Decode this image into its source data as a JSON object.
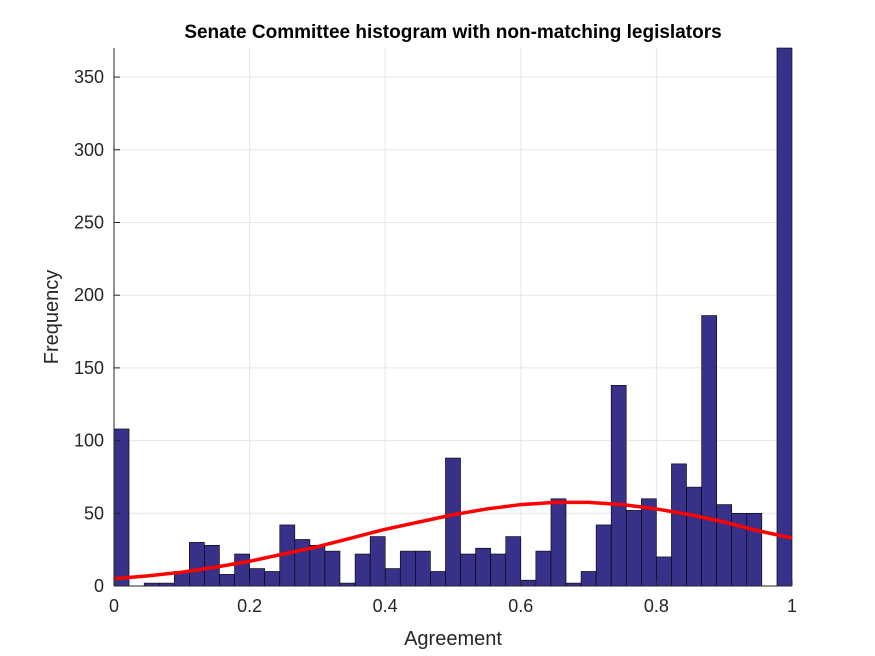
{
  "chart_data": {
    "type": "bar",
    "title": "Senate Committee histogram with non-matching legislators",
    "xlabel": "Agreement",
    "ylabel": "Frequency",
    "xlim": [
      0,
      1
    ],
    "ylim": [
      0,
      370
    ],
    "grid": true,
    "x_ticks": [
      "0",
      "0.2",
      "0.4",
      "0.6",
      "0.8",
      "1"
    ],
    "x_tick_values": [
      0,
      0.2,
      0.4,
      0.6,
      0.8,
      1
    ],
    "y_ticks": [
      "0",
      "50",
      "100",
      "150",
      "200",
      "250",
      "300",
      "350"
    ],
    "y_tick_values": [
      0,
      50,
      100,
      150,
      200,
      250,
      300,
      350
    ],
    "bin_width": 0.0222,
    "bins": {
      "x": [
        0.0111,
        0.0333,
        0.0556,
        0.0778,
        0.1,
        0.1222,
        0.1444,
        0.1667,
        0.1889,
        0.2111,
        0.2333,
        0.2556,
        0.2778,
        0.3,
        0.3222,
        0.3444,
        0.3667,
        0.3889,
        0.4111,
        0.4333,
        0.4556,
        0.4778,
        0.5,
        0.5222,
        0.5444,
        0.5667,
        0.5889,
        0.6111,
        0.6333,
        0.6556,
        0.6778,
        0.7,
        0.7222,
        0.7444,
        0.7667,
        0.7889,
        0.8111,
        0.8333,
        0.8556,
        0.8778,
        0.9,
        0.9222,
        0.9444,
        0.9667,
        0.9889
      ],
      "values": [
        108,
        0,
        2,
        2,
        10,
        30,
        28,
        8,
        22,
        12,
        10,
        42,
        32,
        28,
        24,
        2,
        22,
        34,
        12,
        24,
        24,
        10,
        88,
        22,
        26,
        22,
        34,
        4,
        24,
        60,
        2,
        10,
        42,
        138,
        52,
        60,
        20,
        84,
        68,
        186,
        56,
        50,
        50,
        0,
        370
      ]
    },
    "series": [
      {
        "name": "",
        "type": "line",
        "color": "#ff0000",
        "x": [
          0,
          0.05,
          0.1,
          0.15,
          0.2,
          0.25,
          0.3,
          0.35,
          0.4,
          0.45,
          0.5,
          0.55,
          0.6,
          0.65,
          0.7,
          0.75,
          0.8,
          0.85,
          0.9,
          0.95,
          1
        ],
        "values": [
          5,
          7,
          9.5,
          13,
          17,
          22,
          27,
          33,
          39,
          44,
          49,
          53,
          56,
          57.5,
          57.5,
          56,
          53,
          49,
          44,
          38,
          33
        ]
      }
    ],
    "colors": {
      "bar_fill": "#37318a",
      "bar_edge": "#000000",
      "curve": "#ff0000",
      "grid": "#e6e6e6",
      "axis": "#262626"
    }
  }
}
